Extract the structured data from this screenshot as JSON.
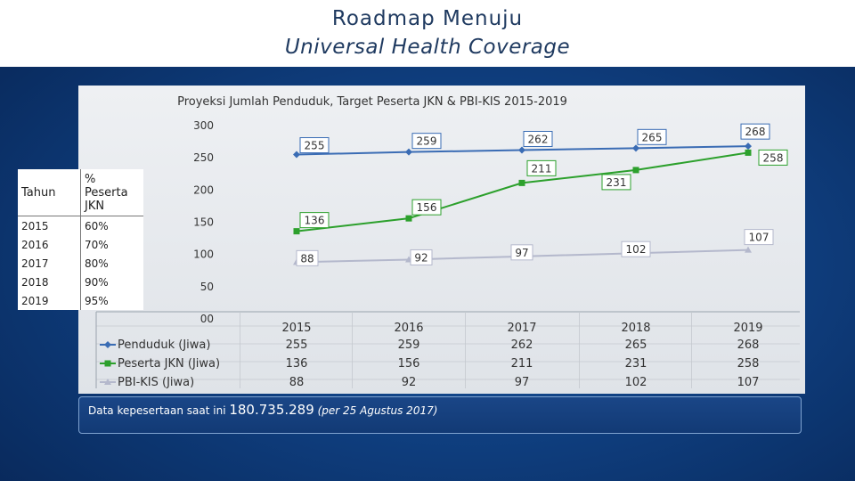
{
  "header": {
    "title_line1": "Roadmap Menuju",
    "title_line2": "Universal Health Coverage"
  },
  "side_table": {
    "headers": [
      "Tahun",
      "% Peserta JKN"
    ],
    "rows": [
      [
        "2015",
        "60%"
      ],
      [
        "2016",
        "70%"
      ],
      [
        "2017",
        "80%"
      ],
      [
        "2018",
        "90%"
      ],
      [
        "2019",
        "95%"
      ]
    ]
  },
  "info": {
    "prefix": "Data kepesertaan saat ini ",
    "value": "180.735.289",
    "note": "(per 25 Agustus 2017)"
  },
  "colors": {
    "penduduk": "#3a6cb4",
    "jkn": "#2ca02c",
    "pbi": "#b4b8cc",
    "background": "#0f3f80"
  },
  "chart_data": {
    "type": "line",
    "title": "Proyeksi Jumlah Penduduk, Target Peserta JKN & PBI-KIS 2015-2019",
    "categories": [
      "2015",
      "2016",
      "2017",
      "2018",
      "2019"
    ],
    "y_ticks": [
      "00",
      "50",
      "100",
      "150",
      "200",
      "250",
      "300"
    ],
    "ylim": [
      0,
      300
    ],
    "grid": false,
    "legend": "data-table-below",
    "series": [
      {
        "name": "Penduduk (Jiwa)",
        "values": [
          255,
          259,
          262,
          265,
          268
        ],
        "labels": [
          "255",
          "259",
          "262",
          "265",
          "268"
        ],
        "color": "#3a6cb4",
        "marker": "diamond"
      },
      {
        "name": "Peserta JKN (Jiwa)",
        "values": [
          136,
          156,
          211,
          231,
          258
        ],
        "labels": [
          "136",
          "156",
          "211",
          "231",
          "258"
        ],
        "color": "#2ca02c",
        "marker": "square"
      },
      {
        "name": "PBI-KIS (Jiwa)",
        "values": [
          88,
          92,
          97,
          102,
          107
        ],
        "labels": [
          "88",
          "92",
          "97",
          "102",
          "107"
        ],
        "color": "#b4b8cc",
        "marker": "triangle"
      }
    ]
  }
}
